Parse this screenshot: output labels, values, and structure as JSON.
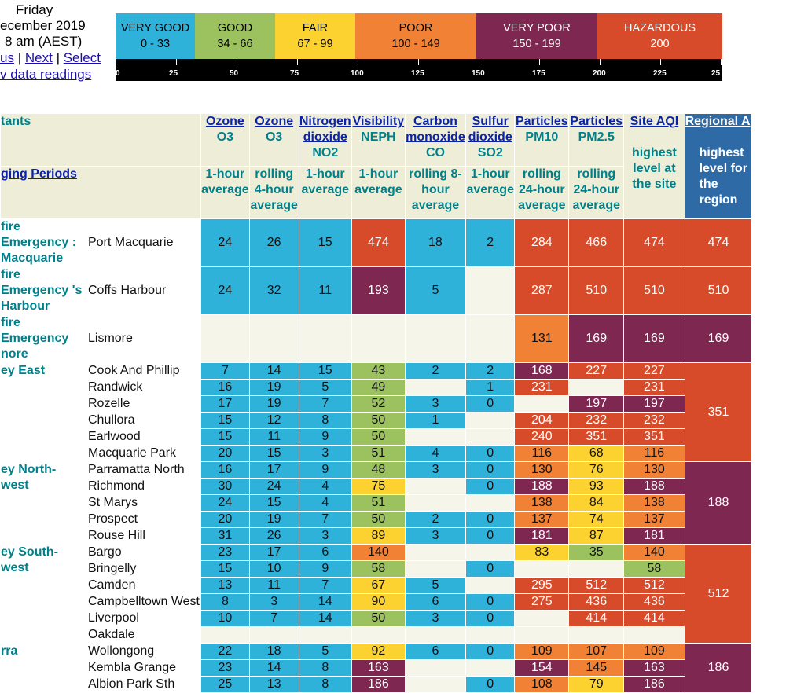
{
  "header": {
    "day": "Friday",
    "date": "ecember 2019",
    "time": "8 am (AEST)",
    "link_prev": "us",
    "link_next": "Next",
    "link_select": "Select",
    "link_readings": "v data readings",
    "sep1": "|",
    "sep2": "|"
  },
  "legend": {
    "bands": [
      {
        "label": "VERY GOOD",
        "range": "0 - 33",
        "color": "#2fb2d9"
      },
      {
        "label": "GOOD",
        "range": "34 - 66",
        "color": "#9bc25e"
      },
      {
        "label": "FAIR",
        "range": "67 - 99",
        "color": "#fcd230"
      },
      {
        "label": "POOR",
        "range": "100 - 149",
        "color": "#f08135"
      },
      {
        "label": "VERY POOR",
        "range": "150 - 199",
        "color": "#7e2750"
      },
      {
        "label": "HAZARDOUS",
        "range": "200",
        "color": "#d84b2a"
      }
    ],
    "ticks": [
      "0",
      "25",
      "50",
      "75",
      "100",
      "125",
      "150",
      "175",
      "200",
      "225",
      "25"
    ]
  },
  "table": {
    "corner_pollutants": "tants",
    "corner_periods": "ging Periods",
    "columns": [
      {
        "link": "Ozone",
        "code": "O3",
        "period": "1-hour average"
      },
      {
        "link": "Ozone",
        "code": "O3",
        "period": "rolling 4-hour average"
      },
      {
        "link": "Nitrogen dioxide",
        "code": "NO2",
        "period": "1-hour average"
      },
      {
        "link": "Visibility",
        "code": "NEPH",
        "period": "1-hour average"
      },
      {
        "link": "Carbon monoxide",
        "code": "CO",
        "period": "rolling 8-hour average"
      },
      {
        "link": "Sulfur dioxide",
        "code": "SO2",
        "period": "1-hour average"
      },
      {
        "link": "Particles",
        "code": "PM10",
        "period": "rolling 24-hour average"
      },
      {
        "link": "Particles",
        "code": "PM2.5",
        "period": "rolling 24-hour average"
      }
    ],
    "site_aqi": {
      "link": "Site AQI",
      "desc": "highest level at the site"
    },
    "regional": {
      "link": "Regional A",
      "desc": "highest level for the region"
    },
    "regions": [
      {
        "name": "fire Emergency : Macquarie",
        "value": "474",
        "rows": [
          {
            "site": "Port Macquarie",
            "values": [
              "24",
              "26",
              "15",
              "474",
              "18",
              "2",
              "284",
              "466",
              "474"
            ]
          }
        ]
      },
      {
        "name": "fire Emergency 's Harbour",
        "value": "510",
        "rows": [
          {
            "site": "Coffs Harbour",
            "values": [
              "24",
              "32",
              "11",
              "193",
              "5",
              "",
              "287",
              "510",
              "510"
            ]
          }
        ]
      },
      {
        "name": "fire Emergency nore",
        "value": "169",
        "rows": [
          {
            "site": "Lismore",
            "values": [
              "",
              "",
              "",
              "",
              "",
              "",
              "131",
              "169",
              "169"
            ]
          }
        ]
      },
      {
        "name": "ey East",
        "value": "351",
        "rows": [
          {
            "site": "Cook And Phillip",
            "values": [
              "7",
              "14",
              "15",
              "43",
              "2",
              "2",
              "168",
              "227",
              "227"
            ]
          },
          {
            "site": "Randwick",
            "values": [
              "16",
              "19",
              "5",
              "49",
              "",
              "1",
              "231",
              "",
              "231"
            ]
          },
          {
            "site": "Rozelle",
            "values": [
              "17",
              "19",
              "7",
              "52",
              "3",
              "0",
              "",
              "197",
              "197"
            ]
          },
          {
            "site": "Chullora",
            "values": [
              "15",
              "12",
              "8",
              "50",
              "1",
              "",
              "204",
              "232",
              "232"
            ]
          },
          {
            "site": "Earlwood",
            "values": [
              "15",
              "11",
              "9",
              "50",
              "",
              "",
              "240",
              "351",
              "351"
            ]
          },
          {
            "site": "Macquarie Park",
            "values": [
              "20",
              "15",
              "3",
              "51",
              "4",
              "0",
              "116",
              "68",
              "116"
            ]
          }
        ]
      },
      {
        "name": "ey North-west",
        "value": "188",
        "rows": [
          {
            "site": "Parramatta North",
            "values": [
              "16",
              "17",
              "9",
              "48",
              "3",
              "0",
              "130",
              "76",
              "130"
            ]
          },
          {
            "site": "Richmond",
            "values": [
              "30",
              "24",
              "4",
              "75",
              "",
              "0",
              "188",
              "93",
              "188"
            ]
          },
          {
            "site": "St Marys",
            "values": [
              "24",
              "15",
              "4",
              "51",
              "",
              "",
              "138",
              "84",
              "138"
            ]
          },
          {
            "site": "Prospect",
            "values": [
              "20",
              "19",
              "7",
              "50",
              "2",
              "0",
              "137",
              "74",
              "137"
            ]
          },
          {
            "site": "Rouse Hill",
            "values": [
              "31",
              "26",
              "3",
              "89",
              "3",
              "0",
              "181",
              "87",
              "181"
            ]
          }
        ]
      },
      {
        "name": "ey South-west",
        "value": "512",
        "rows": [
          {
            "site": "Bargo",
            "values": [
              "23",
              "17",
              "6",
              "140",
              "",
              "",
              "83",
              "35",
              "140"
            ]
          },
          {
            "site": "Bringelly",
            "values": [
              "15",
              "10",
              "9",
              "58",
              "",
              "0",
              "",
              "",
              "58"
            ]
          },
          {
            "site": "Camden",
            "values": [
              "13",
              "11",
              "7",
              "67",
              "5",
              "",
              "295",
              "512",
              "512"
            ]
          },
          {
            "site": "Campbelltown West",
            "values": [
              "8",
              "3",
              "14",
              "90",
              "6",
              "0",
              "275",
              "436",
              "436"
            ]
          },
          {
            "site": "Liverpool",
            "values": [
              "10",
              "7",
              "14",
              "50",
              "3",
              "0",
              "",
              "414",
              "414"
            ]
          },
          {
            "site": "Oakdale",
            "values": [
              "",
              "",
              "",
              "",
              "",
              "",
              "",
              "",
              ""
            ]
          }
        ]
      },
      {
        "name": "rra",
        "value": "186",
        "rows": [
          {
            "site": "Wollongong",
            "values": [
              "22",
              "18",
              "5",
              "92",
              "6",
              "0",
              "109",
              "107",
              "109"
            ]
          },
          {
            "site": "Kembla Grange",
            "values": [
              "23",
              "14",
              "8",
              "163",
              "",
              "",
              "154",
              "145",
              "163"
            ]
          },
          {
            "site": "Albion Park Sth",
            "values": [
              "25",
              "13",
              "8",
              "186",
              "",
              "0",
              "108",
              "79",
              "186"
            ]
          }
        ]
      }
    ]
  }
}
